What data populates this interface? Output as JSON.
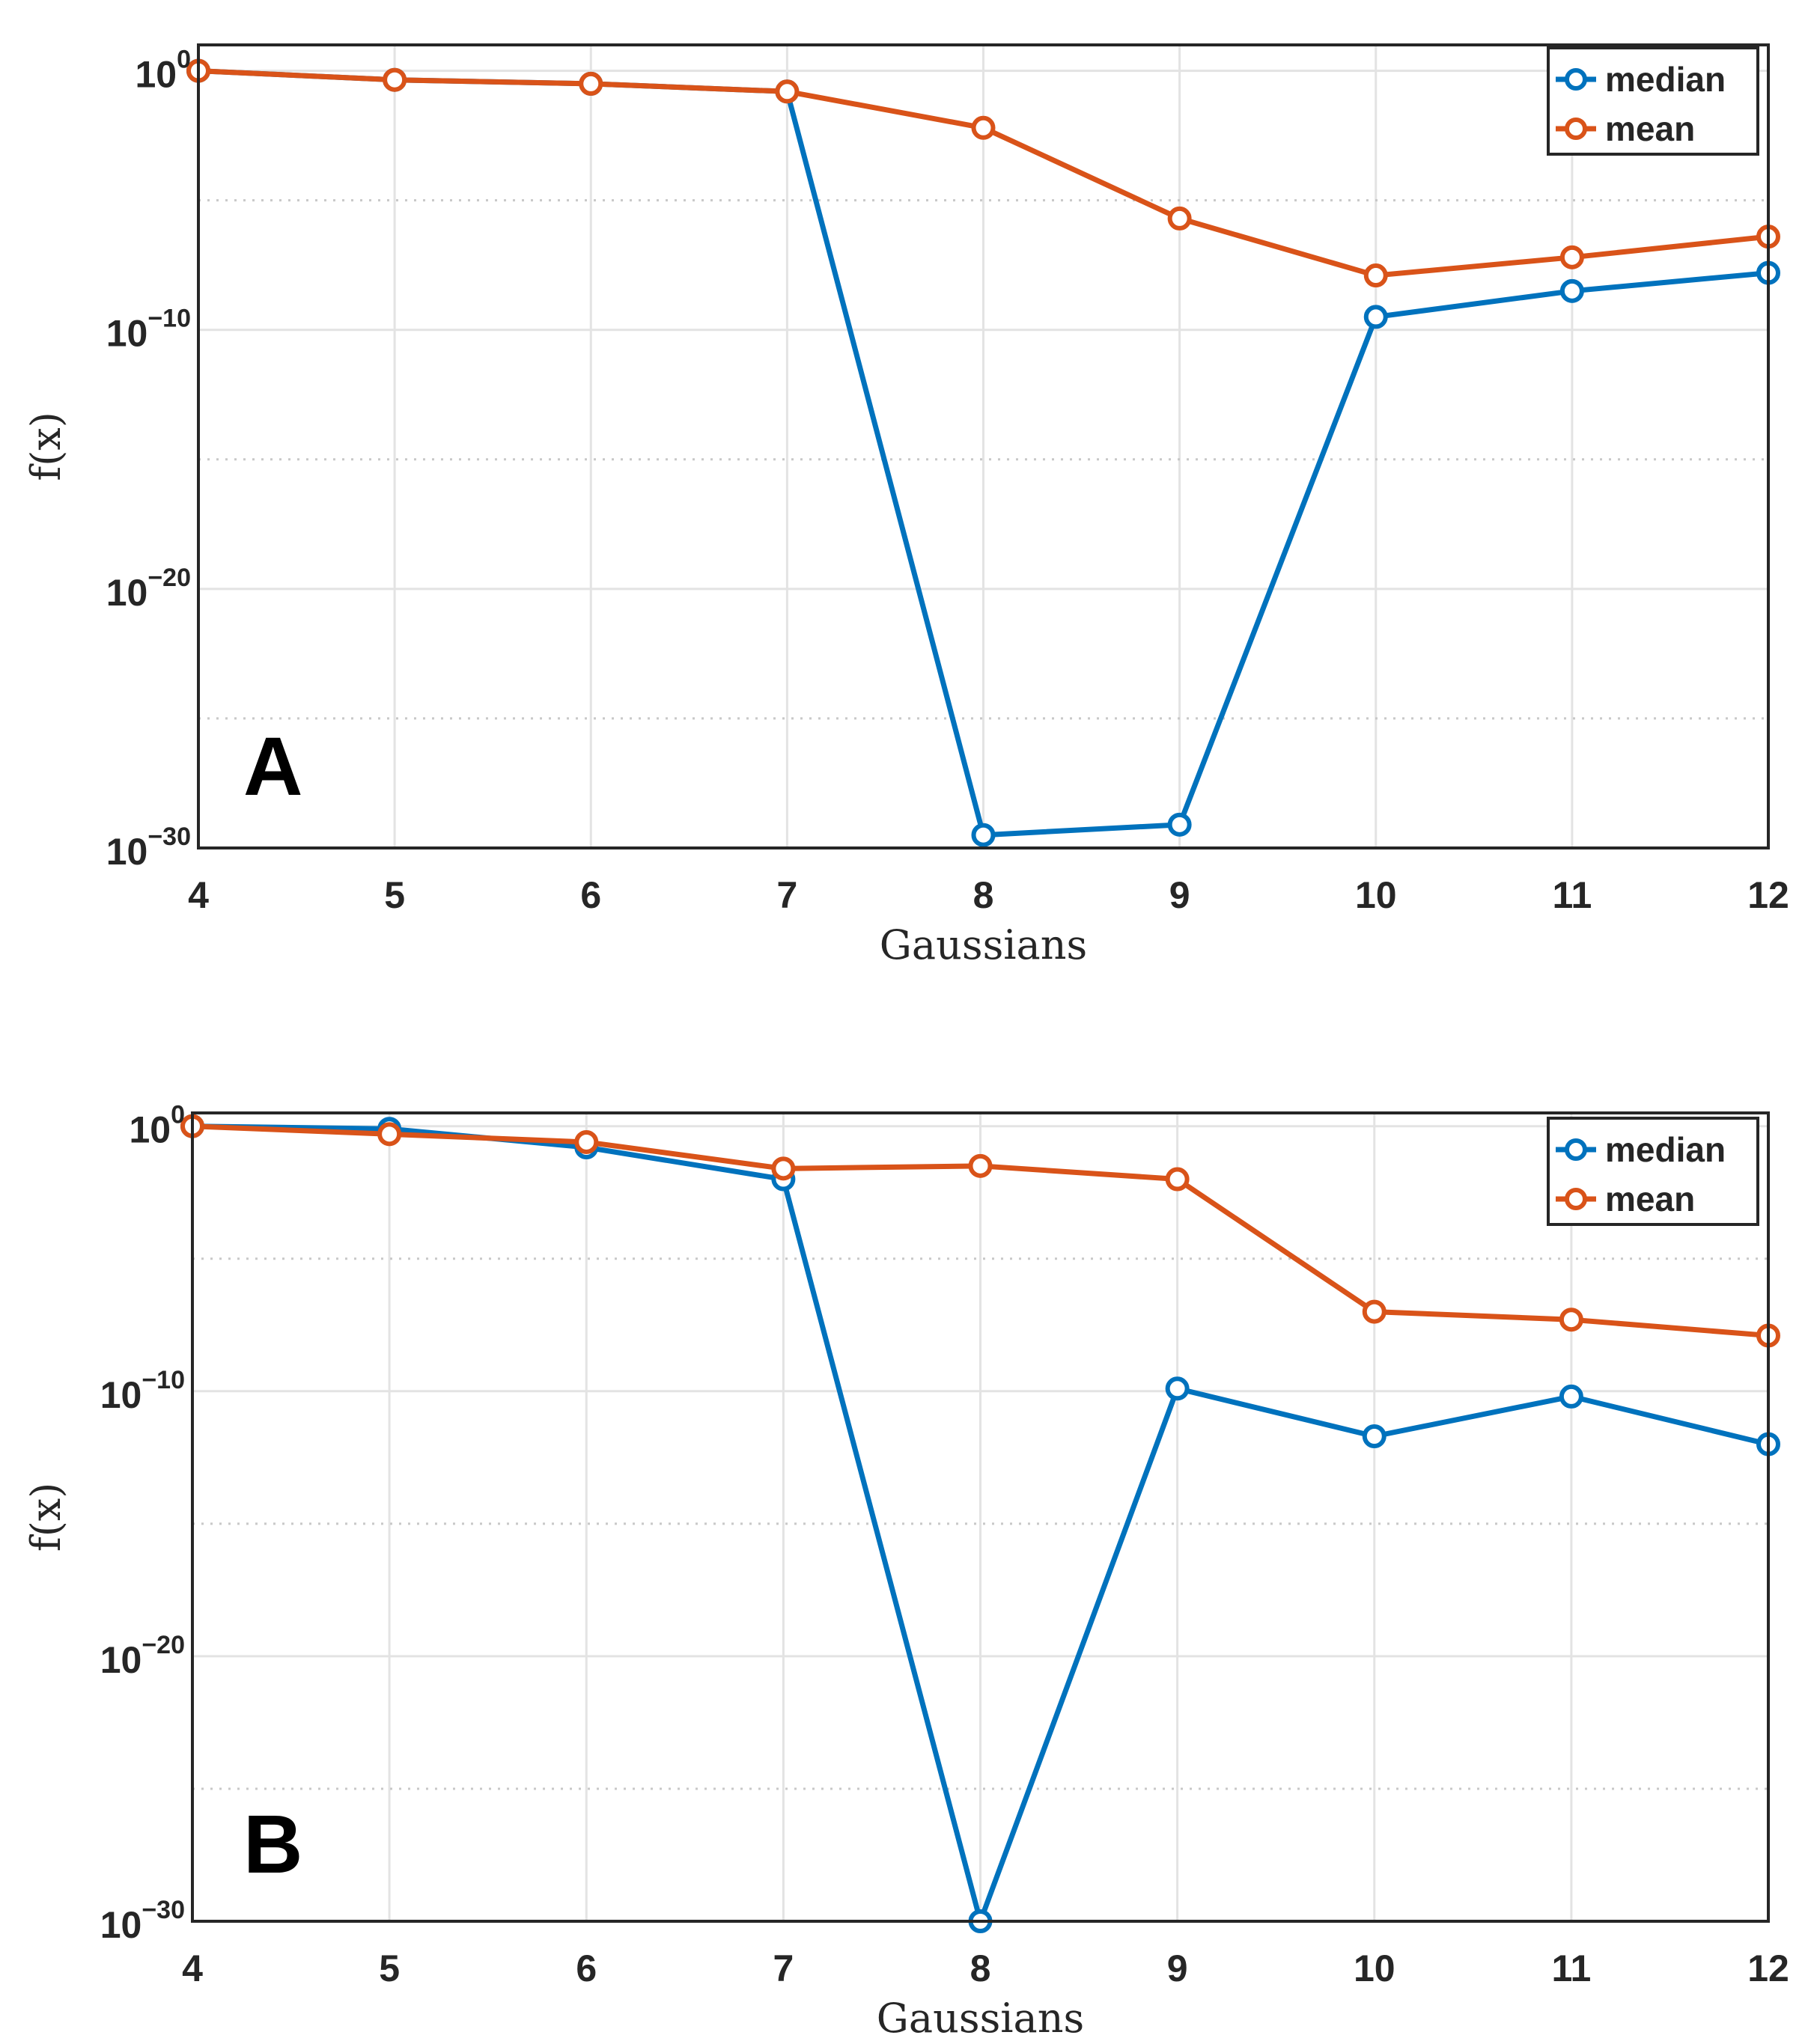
{
  "chart_data": [
    {
      "type": "line",
      "panel_label": "A",
      "xlabel": "Gaussians",
      "ylabel": "f(x)",
      "yscale": "log",
      "x": [
        4,
        5,
        6,
        7,
        8,
        9,
        10,
        11,
        12
      ],
      "xticks": [
        "4",
        "5",
        "6",
        "7",
        "8",
        "9",
        "10",
        "11",
        "12"
      ],
      "xlim": [
        4,
        12
      ],
      "yticks": [
        {
          "base": "10",
          "exp": "0"
        },
        {
          "base": "10",
          "exp": "−10"
        },
        {
          "base": "10",
          "exp": "−20"
        },
        {
          "base": "10",
          "exp": "−30"
        }
      ],
      "ylim_exp": [
        -30,
        1
      ],
      "legend_position": "top-right",
      "grid": true,
      "series": [
        {
          "name": "median",
          "color": "#0072BD",
          "log10_values": [
            0.0,
            -0.35,
            -0.5,
            -0.8,
            -29.5,
            -29.1,
            -9.5,
            -8.5,
            -7.8
          ]
        },
        {
          "name": "mean",
          "color": "#D95319",
          "log10_values": [
            0.0,
            -0.35,
            -0.5,
            -0.8,
            -2.2,
            -5.7,
            -7.9,
            -7.2,
            -6.4
          ]
        }
      ]
    },
    {
      "type": "line",
      "panel_label": "B",
      "xlabel": "Gaussians",
      "ylabel": "f(x)",
      "yscale": "log",
      "x": [
        4,
        5,
        6,
        7,
        8,
        9,
        10,
        11,
        12
      ],
      "xticks": [
        "4",
        "5",
        "6",
        "7",
        "8",
        "9",
        "10",
        "11",
        "12"
      ],
      "xlim": [
        4,
        12
      ],
      "yticks": [
        {
          "base": "10",
          "exp": "0"
        },
        {
          "base": "10",
          "exp": "−10"
        },
        {
          "base": "10",
          "exp": "−20"
        },
        {
          "base": "10",
          "exp": "−30"
        }
      ],
      "ylim_exp": [
        -30,
        0.5
      ],
      "legend_position": "top-right",
      "grid": true,
      "series": [
        {
          "name": "median",
          "color": "#0072BD",
          "log10_values": [
            0.0,
            -0.1,
            -0.8,
            -2.0,
            -30.0,
            -9.9,
            -11.7,
            -10.2,
            -12.0
          ]
        },
        {
          "name": "mean",
          "color": "#D95319",
          "log10_values": [
            0.0,
            -0.3,
            -0.6,
            -1.6,
            -1.5,
            -2.0,
            -7.0,
            -7.3,
            -7.9
          ]
        }
      ]
    }
  ]
}
